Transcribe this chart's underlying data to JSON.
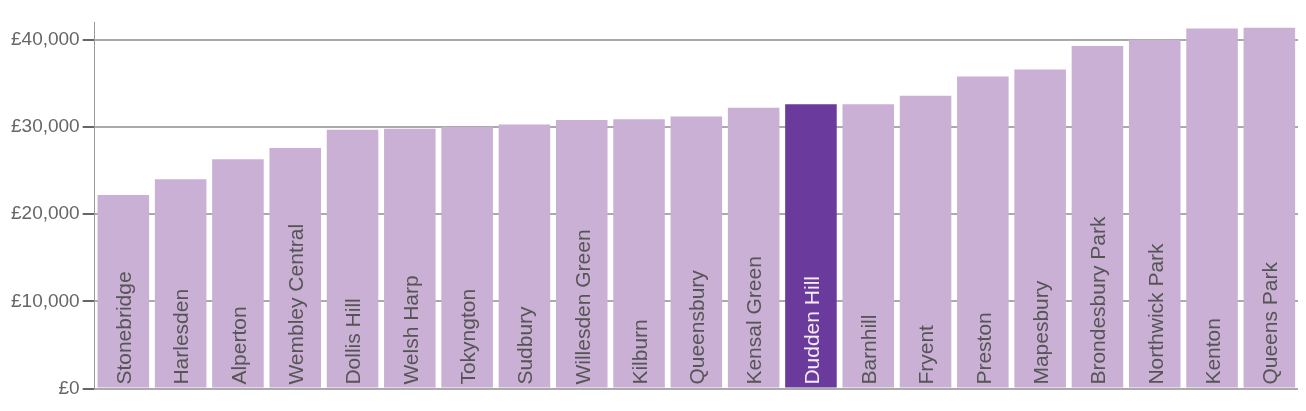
{
  "chart_data": {
    "type": "bar",
    "categories": [
      "Stonebridge",
      "Harlesden",
      "Alperton",
      "Wembley Central",
      "Dollis Hill",
      "Welsh Harp",
      "Tokyngton",
      "Sudbury",
      "Willesden Green",
      "Kilburn",
      "Queensbury",
      "Kensal Green",
      "Dudden Hill",
      "Barnhill",
      "Fryent",
      "Preston",
      "Mapesbury",
      "Brondesbury Park",
      "Northwick Park",
      "Kenton",
      "Queens Park"
    ],
    "values": [
      22200,
      24000,
      26300,
      27600,
      29700,
      29800,
      30000,
      30300,
      30800,
      30900,
      31200,
      32200,
      32600,
      32600,
      33600,
      35800,
      36600,
      39300,
      40000,
      41300,
      41400
    ],
    "colors": [
      "#cbb0d6",
      "#cbb0d6",
      "#cbb0d6",
      "#cbb0d6",
      "#cbb0d6",
      "#cbb0d6",
      "#cbb0d6",
      "#cbb0d6",
      "#cbb0d6",
      "#cbb0d6",
      "#cbb0d6",
      "#cbb0d6",
      "#6a3a9c",
      "#cbb0d6",
      "#cbb0d6",
      "#cbb0d6",
      "#cbb0d6",
      "#cbb0d6",
      "#cbb0d6",
      "#cbb0d6",
      "#cbb0d6"
    ],
    "ylim": [
      0,
      42000
    ],
    "yticks": [
      {
        "value": 0,
        "label": "£0"
      },
      {
        "value": 10000,
        "label": "£10,000"
      },
      {
        "value": 20000,
        "label": "£20,000"
      },
      {
        "value": 30000,
        "label": "£30,000"
      },
      {
        "value": 40000,
        "label": "£40,000"
      }
    ],
    "grid": "y",
    "tick_labels": "y",
    "legend": false
  }
}
